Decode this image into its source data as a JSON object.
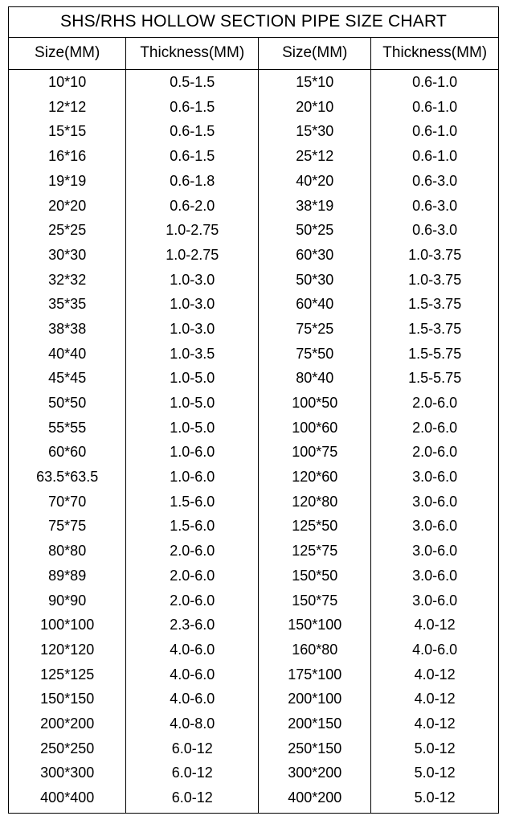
{
  "title": "SHS/RHS HOLLOW SECTION PIPE SIZE CHART",
  "columns": [
    "Size(MM)",
    "Thickness(MM)",
    "Size(MM)",
    "Thickness(MM)"
  ],
  "rows": [
    [
      "10*10",
      "0.5-1.5",
      "15*10",
      "0.6-1.0"
    ],
    [
      "12*12",
      "0.6-1.5",
      "20*10",
      "0.6-1.0"
    ],
    [
      "15*15",
      "0.6-1.5",
      "15*30",
      "0.6-1.0"
    ],
    [
      "16*16",
      "0.6-1.5",
      "25*12",
      "0.6-1.0"
    ],
    [
      "19*19",
      "0.6-1.8",
      "40*20",
      "0.6-3.0"
    ],
    [
      "20*20",
      "0.6-2.0",
      "38*19",
      "0.6-3.0"
    ],
    [
      "25*25",
      "1.0-2.75",
      "50*25",
      "0.6-3.0"
    ],
    [
      "30*30",
      "1.0-2.75",
      "60*30",
      "1.0-3.75"
    ],
    [
      "32*32",
      "1.0-3.0",
      "50*30",
      "1.0-3.75"
    ],
    [
      "35*35",
      "1.0-3.0",
      "60*40",
      "1.5-3.75"
    ],
    [
      "38*38",
      "1.0-3.0",
      "75*25",
      "1.5-3.75"
    ],
    [
      "40*40",
      "1.0-3.5",
      "75*50",
      "1.5-5.75"
    ],
    [
      "45*45",
      "1.0-5.0",
      "80*40",
      "1.5-5.75"
    ],
    [
      "50*50",
      "1.0-5.0",
      "100*50",
      "2.0-6.0"
    ],
    [
      "55*55",
      "1.0-5.0",
      "100*60",
      "2.0-6.0"
    ],
    [
      "60*60",
      "1.0-6.0",
      "100*75",
      "2.0-6.0"
    ],
    [
      "63.5*63.5",
      "1.0-6.0",
      "120*60",
      "3.0-6.0"
    ],
    [
      "70*70",
      "1.5-6.0",
      "120*80",
      "3.0-6.0"
    ],
    [
      "75*75",
      "1.5-6.0",
      "125*50",
      "3.0-6.0"
    ],
    [
      "80*80",
      "2.0-6.0",
      "125*75",
      "3.0-6.0"
    ],
    [
      "89*89",
      "2.0-6.0",
      "150*50",
      "3.0-6.0"
    ],
    [
      "90*90",
      "2.0-6.0",
      "150*75",
      "3.0-6.0"
    ],
    [
      "100*100",
      "2.3-6.0",
      "150*100",
      "4.0-12"
    ],
    [
      "120*120",
      "4.0-6.0",
      "160*80",
      "4.0-6.0"
    ],
    [
      "125*125",
      "4.0-6.0",
      "175*100",
      "4.0-12"
    ],
    [
      "150*150",
      "4.0-6.0",
      "200*100",
      "4.0-12"
    ],
    [
      "200*200",
      "4.0-8.0",
      "200*150",
      "4.0-12"
    ],
    [
      "250*250",
      "6.0-12",
      "250*150",
      "5.0-12"
    ],
    [
      "300*300",
      "6.0-12",
      "300*200",
      "5.0-12"
    ],
    [
      "400*400",
      "6.0-12",
      "400*200",
      "5.0-12"
    ]
  ],
  "style": {
    "type": "table",
    "border_color": "#000000",
    "border_width": 1.5,
    "background_color": "#ffffff",
    "text_color": "#000000",
    "title_fontsize": 21,
    "header_fontsize": 19,
    "cell_fontsize": 18,
    "font_family": "Arial",
    "column_widths_pct": [
      24,
      27,
      23,
      26
    ],
    "text_align": "center"
  }
}
